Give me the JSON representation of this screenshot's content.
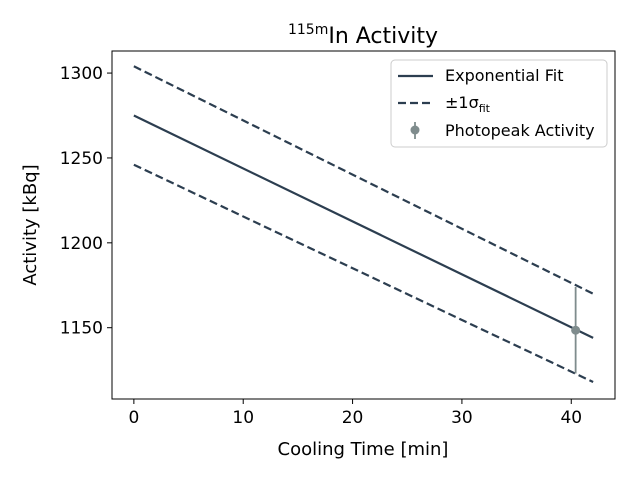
{
  "chart_data": {
    "type": "line",
    "title": {
      "superscript": "115m",
      "main": "In Activity"
    },
    "xlabel": "Cooling Time [min]",
    "ylabel": "Activity [kBq]",
    "xlim": [
      -2,
      44
    ],
    "ylim": [
      1108,
      1313
    ],
    "xticks": [
      0,
      10,
      20,
      30,
      40
    ],
    "yticks": [
      1150,
      1200,
      1250,
      1300
    ],
    "grid": false,
    "legend_position": "top-right",
    "colors": {
      "fit": "#2c3e50",
      "data": "#7f8c8d"
    },
    "series": [
      {
        "key": "fit",
        "name": "Exponential Fit",
        "style": "solid",
        "x": [
          0,
          42
        ],
        "y": [
          1275,
          1144
        ]
      },
      {
        "key": "upper",
        "name": "±1σ_fit",
        "legend_label": {
          "prefix": "±1σ",
          "subscript": "fit"
        },
        "style": "dashed",
        "x": [
          0,
          42
        ],
        "y": [
          1304,
          1170
        ]
      },
      {
        "key": "lower",
        "style": "dashed",
        "x": [
          0,
          42
        ],
        "y": [
          1246,
          1118
        ]
      }
    ],
    "points": {
      "name": "Photopeak Activity",
      "x": [
        40.4
      ],
      "y": [
        1148.5
      ],
      "yerr": [
        25.5
      ]
    }
  }
}
